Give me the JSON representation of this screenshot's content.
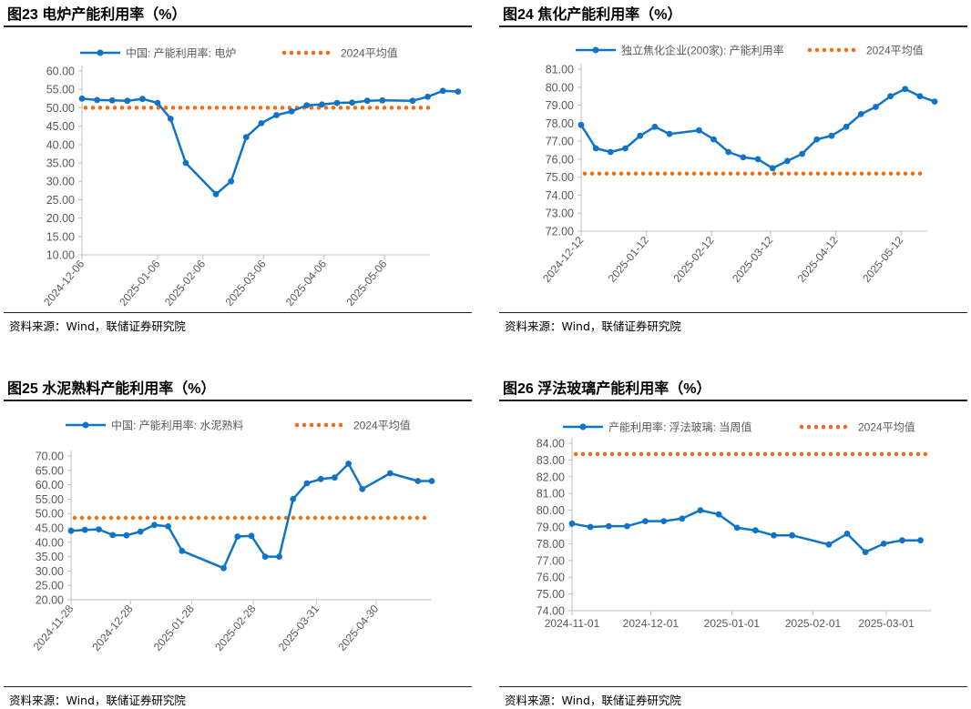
{
  "source_text": "资料来源：Wind，联储证券研究院",
  "colors": {
    "series": "#0f74c8",
    "average": "#f06b17",
    "axis": "#bfbfbf",
    "text": "#595959"
  },
  "chart_data": [
    {
      "type": "line",
      "title": "图23 电炉产能利用率（%）",
      "legend": [
        "中国: 产能利用率: 电炉",
        "2024平均值"
      ],
      "series": [
        {
          "name": "中国: 产能利用率: 电炉",
          "x": [
            "2024-12-06",
            "2024-12-13",
            "2024-12-20",
            "2024-12-27",
            "2025-01-03",
            "2025-01-10",
            "2025-01-16",
            "2025-01-23",
            "2025-02-06",
            "2025-02-13",
            "2025-02-20",
            "2025-02-27",
            "2025-03-06",
            "2025-03-13",
            "2025-03-20",
            "2025-03-27",
            "2025-04-03",
            "2025-04-10",
            "2025-04-17",
            "2025-04-24",
            "2025-05-08",
            "2025-05-15",
            "2025-05-22",
            "2025-05-29"
          ],
          "values": [
            52.5,
            52.1,
            52.0,
            51.9,
            52.4,
            51.3,
            47.0,
            35.0,
            26.5,
            30.0,
            42.0,
            45.8,
            48.0,
            49.0,
            50.7,
            50.9,
            51.3,
            51.4,
            51.9,
            52.0,
            51.9,
            53.0,
            54.6,
            54.4
          ]
        },
        {
          "name": "2024平均值",
          "values": [
            50.0
          ]
        }
      ],
      "y_ticks": [
        "60.00",
        "55.00",
        "50.00",
        "45.00",
        "40.00",
        "35.00",
        "30.00",
        "25.00",
        "20.00",
        "15.00",
        "10.00"
      ],
      "ylim": [
        10,
        60
      ],
      "x_ticks": [
        "2024-12-06",
        "2025-01-06",
        "2025-02-06",
        "2025-03-06",
        "2025-04-06",
        "2025-05-06"
      ],
      "x_tick_pos": [
        0,
        5,
        8,
        12,
        16,
        20
      ],
      "x_end": 23
    },
    {
      "type": "line",
      "title": "图24 焦化产能利用率（%）",
      "legend": [
        "独立焦化企业(200家): 产能利用率",
        "2024平均值"
      ],
      "series": [
        {
          "name": "独立焦化企业(200家): 产能利用率",
          "x": [
            "2024-12-12",
            "2024-12-19",
            "2024-12-26",
            "2025-01-02",
            "2025-01-09",
            "2025-01-16",
            "2025-01-23",
            "2025-02-06",
            "2025-02-13",
            "2025-02-20",
            "2025-02-27",
            "2025-03-06",
            "2025-03-13",
            "2025-03-20",
            "2025-03-27",
            "2025-04-03",
            "2025-04-10",
            "2025-04-17",
            "2025-04-24",
            "2025-05-01",
            "2025-05-08",
            "2025-05-15",
            "2025-05-22",
            "2025-05-29"
          ],
          "values": [
            77.9,
            76.6,
            76.4,
            76.6,
            77.3,
            77.8,
            77.4,
            77.6,
            77.1,
            76.4,
            76.1,
            76.0,
            75.5,
            75.9,
            76.3,
            77.1,
            77.3,
            77.8,
            78.5,
            78.9,
            79.5,
            79.9,
            79.5,
            79.2
          ]
        },
        {
          "name": "2024平均值",
          "values": [
            75.2
          ]
        }
      ],
      "y_ticks": [
        "81.00",
        "80.00",
        "79.00",
        "78.00",
        "77.00",
        "76.00",
        "75.00",
        "74.00",
        "73.00",
        "72.00"
      ],
      "ylim": [
        72,
        81
      ],
      "x_ticks": [
        "2024-12-12",
        "2025-01-12",
        "2025-02-12",
        "2025-03-12",
        "2025-04-12",
        "2025-05-12"
      ],
      "x_tick_pos": [
        0,
        4.43,
        8.86,
        12.86,
        17.29,
        21.71
      ],
      "x_end": 23.5
    },
    {
      "type": "line",
      "title": "图25 水泥熟料产能利用率（%）",
      "legend": [
        "中国: 产能利用率: 水泥熟料",
        "2024平均值"
      ],
      "series": [
        {
          "name": "中国: 产能利用率: 水泥熟料",
          "x": [
            "2024-11-28",
            "2024-12-05",
            "2024-12-12",
            "2024-12-19",
            "2024-12-26",
            "2025-01-02",
            "2025-01-09",
            "2025-01-16",
            "2025-01-23",
            "2025-02-13",
            "2025-02-20",
            "2025-02-27",
            "2025-03-06",
            "2025-03-13",
            "2025-03-20",
            "2025-03-27",
            "2025-04-03",
            "2025-04-10",
            "2025-04-17",
            "2025-04-24",
            "2025-05-08",
            "2025-05-22",
            "2025-05-29"
          ],
          "values": [
            44.0,
            44.3,
            44.5,
            42.5,
            42.4,
            43.7,
            46.0,
            45.5,
            37.0,
            31.0,
            42.0,
            42.2,
            35.0,
            35.0,
            55.0,
            60.5,
            62.0,
            62.5,
            67.3,
            58.5,
            64.0,
            61.3,
            61.3
          ]
        },
        {
          "name": "2024平均值",
          "values": [
            48.5
          ]
        }
      ],
      "y_ticks": [
        "70.00",
        "65.00",
        "60.00",
        "55.00",
        "50.00",
        "45.00",
        "40.00",
        "35.00",
        "30.00",
        "25.00",
        "20.00"
      ],
      "ylim": [
        20,
        70
      ],
      "x_ticks": [
        "2024-11-28",
        "2024-12-28",
        "2025-01-28",
        "2025-02-28",
        "2025-03-31",
        "2025-04-30"
      ],
      "x_tick_pos": [
        0,
        4.29,
        8.71,
        13.14,
        17.71,
        22
      ],
      "x_end": 26
    },
    {
      "type": "line",
      "title": "图26 浮法玻璃产能利用率（%）",
      "legend": [
        "产能利用率: 浮法玻璃: 当周值",
        "2024平均值"
      ],
      "series": [
        {
          "name": "产能利用率: 浮法玻璃: 当周值",
          "x": [
            "2024-11-01",
            "2024-11-08",
            "2024-11-15",
            "2024-11-22",
            "2024-11-29",
            "2024-12-06",
            "2024-12-13",
            "2024-12-20",
            "2024-12-27",
            "2025-01-03",
            "2025-01-10",
            "2025-01-17",
            "2025-01-24",
            "2025-02-07",
            "2025-02-14",
            "2025-02-21",
            "2025-02-28",
            "2025-03-07",
            "2025-03-14"
          ],
          "values": [
            79.2,
            79.0,
            79.05,
            79.05,
            79.35,
            79.35,
            79.5,
            80.0,
            79.75,
            78.95,
            78.8,
            78.5,
            78.5,
            77.95,
            78.6,
            77.5,
            78.0,
            78.2,
            78.2
          ]
        },
        {
          "name": "2024平均值",
          "values": [
            83.35
          ]
        }
      ],
      "y_ticks": [
        "84.00",
        "83.00",
        "82.00",
        "81.00",
        "80.00",
        "79.00",
        "78.00",
        "77.00",
        "76.00",
        "75.00",
        "74.00"
      ],
      "ylim": [
        74,
        84
      ],
      "x_ticks": [
        "2024-11-01",
        "2024-12-01",
        "2025-01-01",
        "2025-02-01",
        "2025-03-01"
      ],
      "x_tick_pos": [
        0,
        4.29,
        8.71,
        13.14,
        17.14
      ],
      "x_end": 19.57
    }
  ]
}
